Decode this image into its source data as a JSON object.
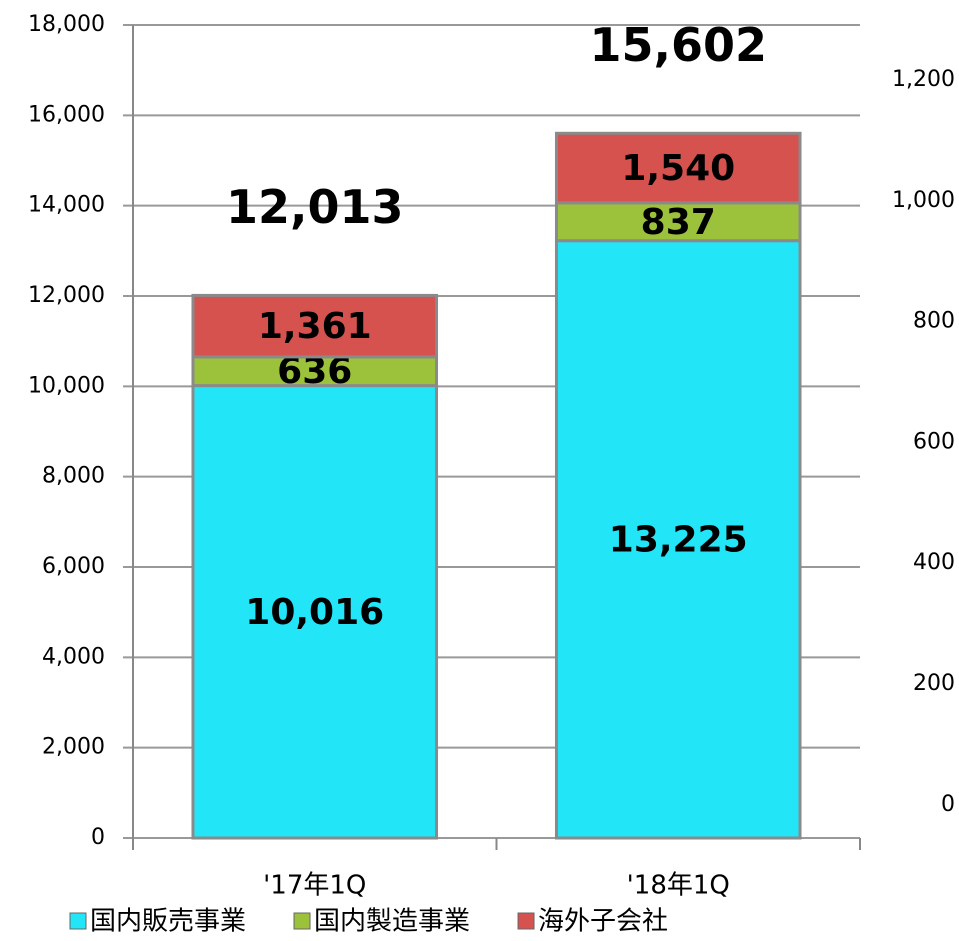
{
  "chart_data": {
    "type": "stacked_bar",
    "categories": [
      "'17年1Q",
      "'18年1Q"
    ],
    "series": [
      {
        "name": "国内販売事業",
        "color": "#22e6f8",
        "values": [
          10016,
          13225
        ],
        "value_labels": [
          "10,016",
          "13,225"
        ]
      },
      {
        "name": "国内製造事業",
        "color": "#9cc23c",
        "values": [
          636,
          837
        ],
        "value_labels": [
          "636",
          "837"
        ]
      },
      {
        "name": "海外子会社",
        "color": "#d5524f",
        "values": [
          1361,
          1540
        ],
        "value_labels": [
          "1,361",
          "1,540"
        ]
      }
    ],
    "totals": [
      12013,
      15602
    ],
    "totals_labels": [
      "12,013",
      "15,602"
    ],
    "ylim": [
      0,
      18000
    ],
    "yticks": [
      0,
      {
        "value": 2000,
        "label": "2,000"
      },
      {
        "value": 4000,
        "label": "4,000"
      },
      {
        "value": 6000,
        "label": "6,000"
      },
      {
        "value": 8000,
        "label": "8,000"
      },
      {
        "value": 10000,
        "label": "10,000"
      },
      {
        "value": 12000,
        "label": "12,000"
      },
      {
        "value": 14000,
        "label": "14,000"
      },
      {
        "value": 16000,
        "label": "16,000"
      },
      {
        "value": 18000,
        "label": "18,000"
      }
    ],
    "y2lim": [
      -55,
      1291
    ],
    "y2ticks": [
      0,
      200,
      400,
      600,
      800,
      {
        "value": 1000,
        "label": "1,000"
      },
      {
        "value": 1200,
        "label": "1,200"
      }
    ],
    "grid": true,
    "legend": "bottom"
  }
}
